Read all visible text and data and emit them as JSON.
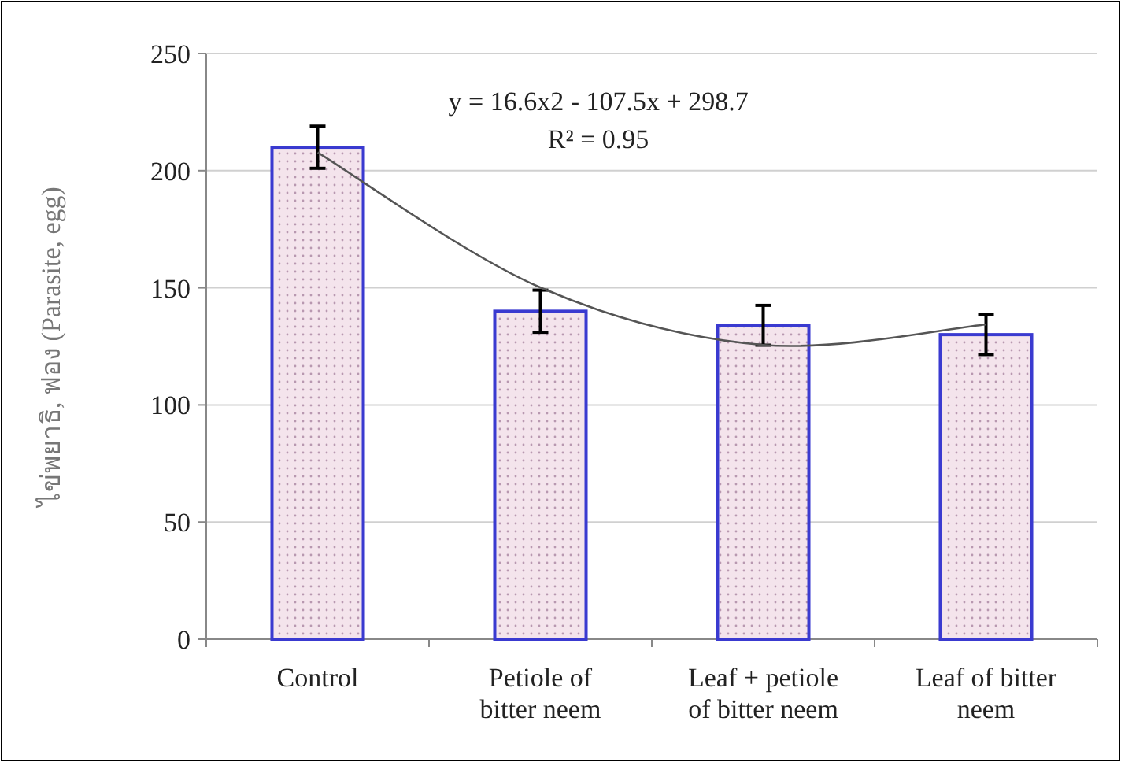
{
  "chart_data": {
    "type": "bar",
    "ylabel": "ไข่พยาธิ, ฟอง (Parasite, egg)",
    "categories": [
      "Control",
      "Petiole of bitter neem",
      "Leaf + petiole of bitter neem",
      "Leaf of bitter neem"
    ],
    "series": [
      {
        "type": "bar",
        "color": "#3a3ad0",
        "values": [
          210,
          140,
          134,
          130
        ],
        "errors": [
          9,
          9,
          8.5,
          8.5
        ]
      },
      {
        "type": "line",
        "color": "#555555",
        "values": [
          207.8,
          150.1,
          125.6,
          134.3
        ]
      }
    ],
    "ylim": [
      0,
      250
    ],
    "yticks": [
      0,
      50,
      100,
      150,
      200,
      250
    ],
    "grid": "y",
    "annotations": [
      "y = 16.6x2 - 107.5x + 298.7",
      "R² = 0.95"
    ]
  }
}
